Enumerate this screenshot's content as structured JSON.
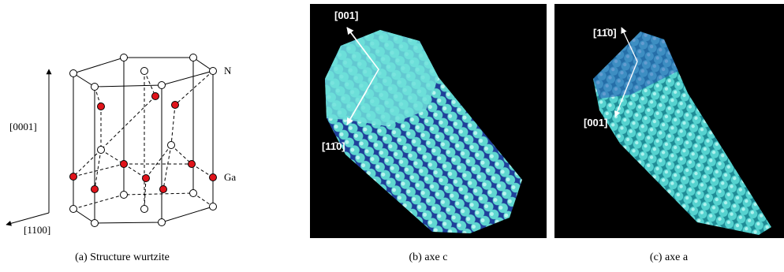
{
  "panels": [
    {
      "caption": "(a) Structure wurtzite",
      "axis_vertical": "[0001]",
      "axis_horizontal": "[1100]",
      "atom_top": "N",
      "atom_bottom": "Ga"
    },
    {
      "caption": "(b) axe c",
      "arrow_up": "[001]",
      "arrow_down": "[11̄0]"
    },
    {
      "caption": "(c) axe a",
      "arrow_up": "[11̄0]",
      "arrow_down": "[001]"
    }
  ]
}
